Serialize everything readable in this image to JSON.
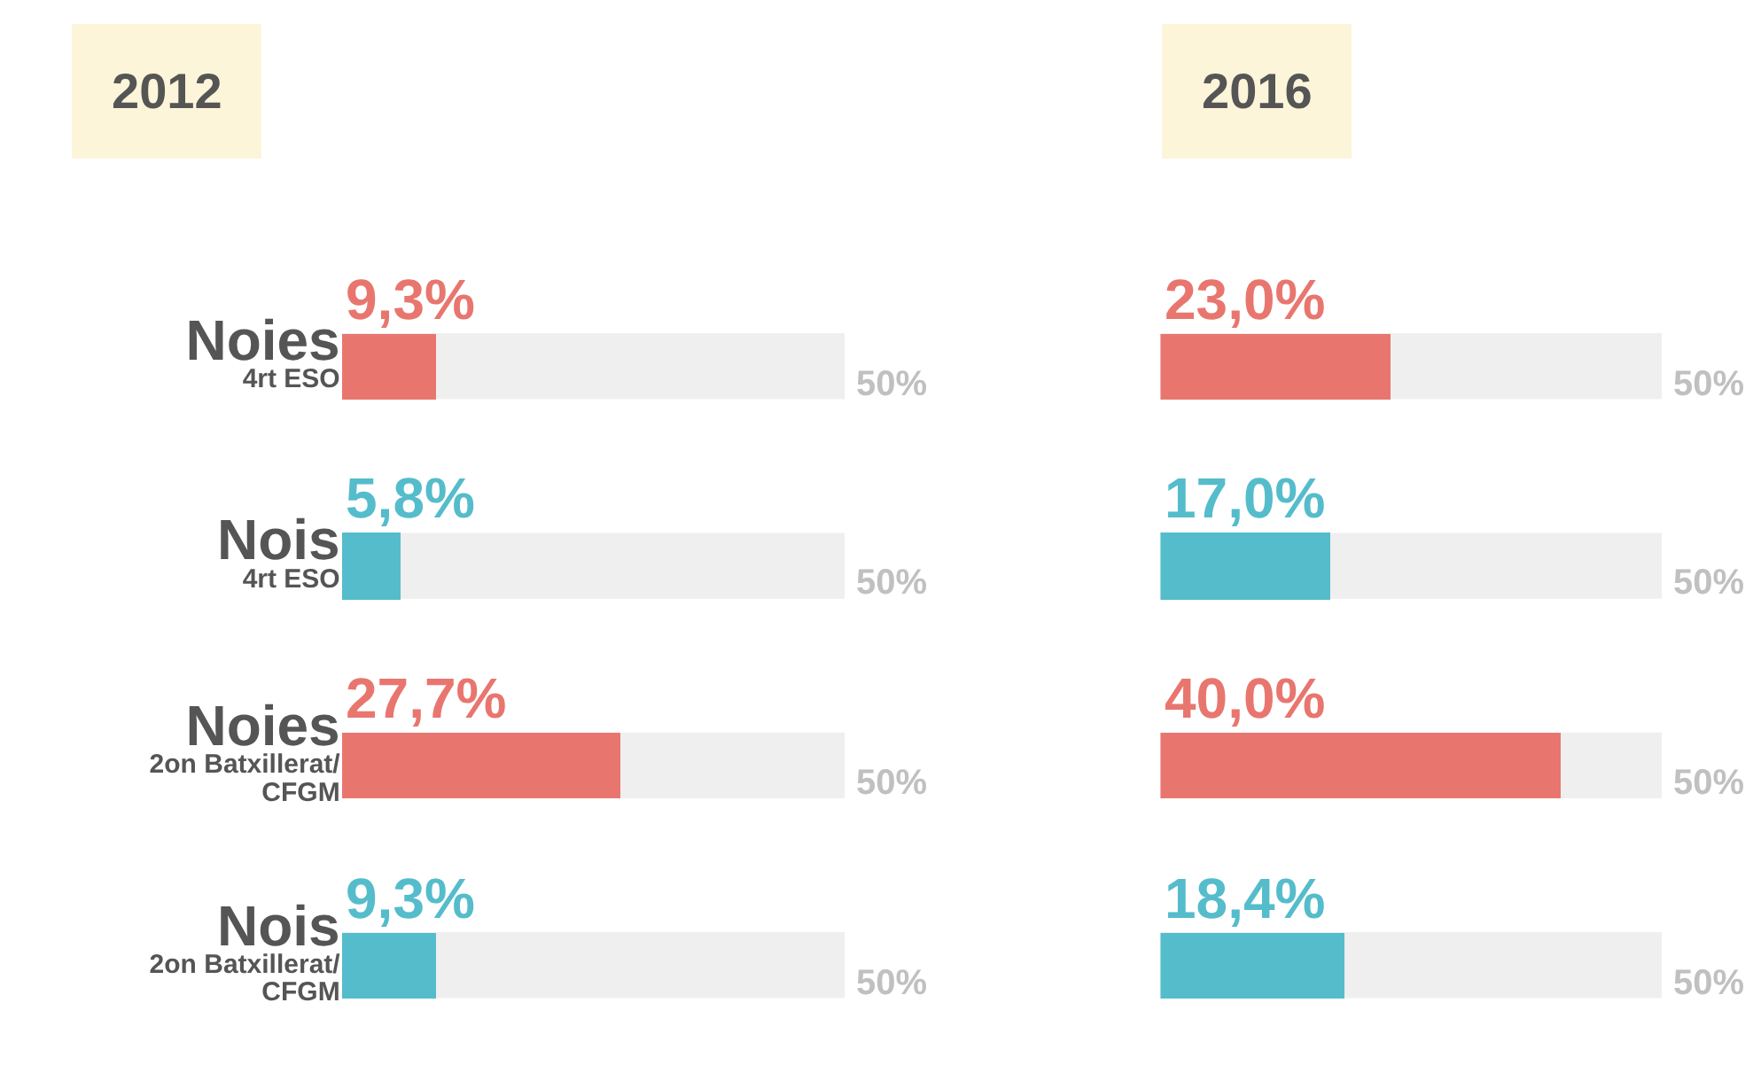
{
  "chart_data": [
    {
      "type": "bar",
      "orientation": "horizontal",
      "title": "2012",
      "categories": [
        "Noies\n4rt ESO",
        "Nois\n4rt ESO",
        "Noies\n2on Batxillerat/\nCFGM",
        "Nois\n2on Batxillerat/\nCFGM"
      ],
      "values": [
        9.3,
        5.8,
        27.7,
        9.3
      ],
      "colors": [
        "#e8766f",
        "#55bccb",
        "#e8766f",
        "#55bccb"
      ],
      "value_labels": [
        "9,3%",
        "5,8%",
        "27,7%",
        "9,3%"
      ],
      "xlim": [
        0,
        50
      ],
      "bands": [
        {
          "axis": "x",
          "from": 0,
          "to": 50,
          "color": "#efefef"
        }
      ],
      "annotations": [
        "50%",
        "50%",
        "50%",
        "50%"
      ],
      "tick_labels": "y"
    },
    {
      "type": "bar",
      "orientation": "horizontal",
      "title": "2016",
      "categories": [
        null,
        null,
        null,
        null
      ],
      "values": [
        23.0,
        17.0,
        40.0,
        18.4
      ],
      "colors": [
        "#e8766f",
        "#55bccb",
        "#e8766f",
        "#55bccb"
      ],
      "value_labels": [
        "23,0%",
        "17,0%",
        "40,0%",
        "18,4%"
      ],
      "xlim": [
        0,
        50
      ],
      "bands": [
        {
          "axis": "x",
          "from": 0,
          "to": 50,
          "color": "#efefef"
        }
      ],
      "annotations": [
        "50%",
        "50%",
        "50%",
        "50%"
      ]
    }
  ]
}
